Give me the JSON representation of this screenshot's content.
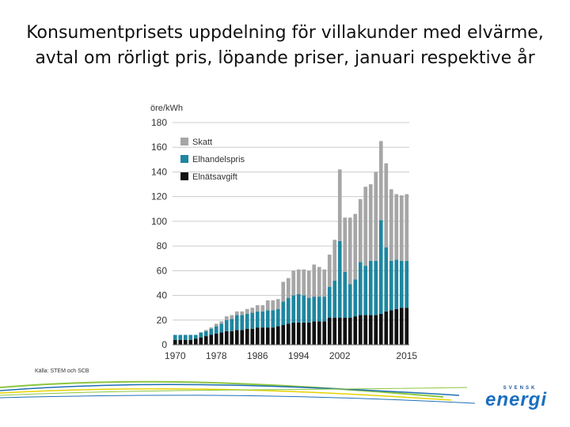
{
  "title": {
    "line1": "Konsumentprisets uppdelning för villakunder med elvärme,",
    "line2": "avtal om rörligt pris, löpande priser, januari respektive år"
  },
  "source": "Källa: STEM och SCB",
  "logo": {
    "top_text": "SVENSK",
    "main_text": "energi"
  },
  "colors": {
    "skatt": "#a6a6a6",
    "elhandelspris": "#1f86a0",
    "elnatsavgift": "#111111",
    "grid": "#cccccc",
    "swoosh_green": "#8cc63f",
    "swoosh_blue": "#1f6fb4",
    "swoosh_yellow": "#e6d200"
  },
  "chart_data": {
    "type": "bar",
    "stacked": true,
    "ylabel": "öre/kWh",
    "ylim": [
      0,
      180
    ],
    "yticks": [
      0,
      20,
      40,
      60,
      80,
      100,
      120,
      140,
      160,
      180
    ],
    "xtick_labels": [
      "1970",
      "1978",
      "1986",
      "1994",
      "2002",
      "2015"
    ],
    "grid": true,
    "legend_position": "top-left",
    "categories": [
      "1970",
      "1971",
      "1972",
      "1973",
      "1974",
      "1975",
      "1976",
      "1977",
      "1978",
      "1979",
      "1980",
      "1981",
      "1982",
      "1983",
      "1984",
      "1985",
      "1986",
      "1987",
      "1988",
      "1989",
      "1990",
      "1991",
      "1992",
      "1993",
      "1994",
      "1995",
      "1996",
      "1997",
      "1998",
      "1999",
      "2000",
      "2001",
      "2002",
      "2003",
      "2004",
      "2005",
      "2006",
      "2007",
      "2008",
      "2009",
      "2010",
      "2011",
      "2012",
      "2013",
      "2014",
      "2015"
    ],
    "series": [
      {
        "name": "Elnätsavgift",
        "color": "#111111",
        "values": [
          4,
          4,
          4,
          4,
          5,
          6,
          7,
          8,
          9,
          10,
          11,
          11,
          12,
          12,
          13,
          13,
          14,
          14,
          14,
          14,
          15,
          16,
          17,
          18,
          18,
          18,
          18,
          19,
          19,
          19,
          22,
          22,
          22,
          22,
          22,
          23,
          24,
          24,
          24,
          24,
          25,
          27,
          28,
          29,
          30,
          30
        ]
      },
      {
        "name": "Elhandelspris",
        "color": "#1f86a0",
        "values": [
          4,
          4,
          4,
          4,
          3,
          4,
          4,
          5,
          6,
          7,
          9,
          10,
          12,
          12,
          12,
          13,
          13,
          13,
          14,
          14,
          14,
          19,
          21,
          22,
          23,
          22,
          20,
          20,
          20,
          20,
          25,
          30,
          62,
          37,
          27,
          30,
          43,
          40,
          44,
          44,
          76,
          52,
          40,
          40,
          38,
          38
        ]
      },
      {
        "name": "Skatt",
        "color": "#a6a6a6",
        "values": [
          0,
          0,
          0,
          0,
          0,
          0,
          1,
          1,
          2,
          2,
          3,
          3,
          3,
          3,
          4,
          4,
          5,
          5,
          8,
          8,
          8,
          16,
          16,
          20,
          20,
          21,
          22,
          26,
          24,
          22,
          26,
          33,
          58,
          44,
          54,
          53,
          51,
          64,
          62,
          72,
          64,
          68,
          58,
          53,
          53,
          54
        ]
      }
    ]
  }
}
